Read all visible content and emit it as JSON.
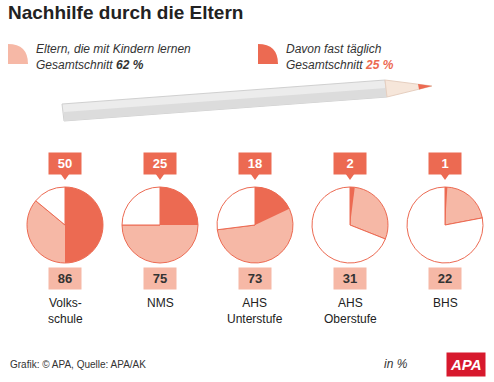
{
  "chart_data": {
    "type": "pie",
    "title": "Nachhilfe durch die Eltern",
    "categories": [
      "Volks-\nschule",
      "NMS",
      "AHS\nUnterstufe",
      "AHS\nOberstufe",
      "BHS"
    ],
    "series": [
      {
        "name": "Eltern, die mit Kindern lernen",
        "color": "#f6b8a6",
        "values": [
          86,
          75,
          73,
          31,
          22
        ],
        "average": 62,
        "average_label": "Gesamtschnitt 62 %"
      },
      {
        "name": "Davon fast täglich",
        "color": "#ec6a52",
        "values": [
          50,
          25,
          18,
          2,
          1
        ],
        "average": 25,
        "average_label": "Gesamtschnitt 25 %"
      }
    ],
    "data_labels": true,
    "unit_note": "in %",
    "source": "Grafik: © APA, Quelle: APA/AK",
    "logo": "APA"
  }
}
